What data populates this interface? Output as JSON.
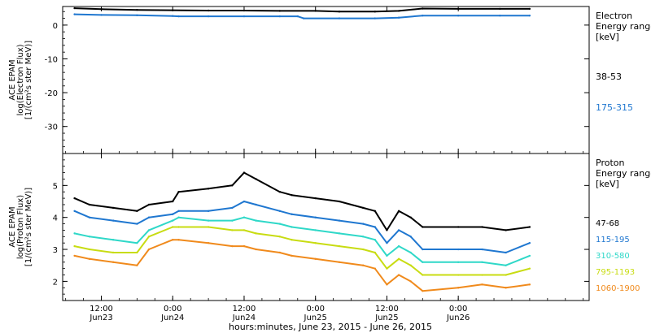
{
  "chart_data": [
    {
      "type": "scatter",
      "panel": "electron",
      "ylabel_lines": [
        "ACE EPAM",
        "log(Electron Flux)",
        "[1/(cm²s ster MeV)]"
      ],
      "ylim": [
        -38,
        5.5
      ],
      "yticks": [
        0,
        -10,
        -20,
        -30
      ],
      "legend_title_lines": [
        "Electron",
        "Energy ranges",
        "[keV]"
      ],
      "series": [
        {
          "name": "38-53",
          "color": "#000000",
          "x": [
            7.5,
            12,
            18,
            24,
            30,
            36,
            42,
            48,
            52,
            58,
            62,
            66,
            72,
            79,
            84
          ],
          "y": [
            5.0,
            4.7,
            4.5,
            4.4,
            4.3,
            4.3,
            4.2,
            4.2,
            4.0,
            4.0,
            4.2,
            4.9,
            4.8,
            4.8,
            4.8
          ]
        },
        {
          "name": "175-315",
          "color": "#1f77d0",
          "x": [
            7.5,
            12,
            18,
            24,
            25,
            30,
            36,
            42,
            45,
            46,
            52,
            58,
            62,
            66,
            72,
            79,
            84
          ],
          "y": [
            3.2,
            3.0,
            2.9,
            2.7,
            2.6,
            2.6,
            2.6,
            2.6,
            2.6,
            2.0,
            2.0,
            2.0,
            2.2,
            2.8,
            2.8,
            2.8,
            2.8
          ]
        }
      ]
    },
    {
      "type": "scatter",
      "panel": "proton",
      "ylabel_lines": [
        "ACE EPAM",
        "log(Proton Flux)",
        "[1/(cm²s ster MeV)]"
      ],
      "ylim": [
        1.4,
        6.0
      ],
      "yticks": [
        2,
        3,
        4,
        5
      ],
      "legend_title_lines": [
        "Proton",
        "Energy ranges",
        "[keV]"
      ],
      "series": [
        {
          "name": "47-68",
          "color": "#000000",
          "x": [
            7.5,
            10,
            14,
            18,
            20,
            24,
            25,
            30,
            34,
            36,
            38,
            42,
            44,
            48,
            52,
            56,
            58,
            60,
            62,
            64,
            66,
            72,
            76,
            80,
            84
          ],
          "y": [
            4.6,
            4.4,
            4.3,
            4.2,
            4.4,
            4.5,
            4.8,
            4.9,
            5.0,
            5.4,
            5.2,
            4.8,
            4.7,
            4.6,
            4.5,
            4.3,
            4.2,
            3.6,
            4.2,
            4.0,
            3.7,
            3.7,
            3.7,
            3.6,
            3.7
          ]
        },
        {
          "name": "115-195",
          "color": "#1f77d0",
          "x": [
            7.5,
            10,
            14,
            18,
            20,
            24,
            25,
            30,
            34,
            36,
            38,
            42,
            44,
            48,
            52,
            56,
            58,
            60,
            62,
            64,
            66,
            72,
            76,
            80,
            84
          ],
          "y": [
            4.2,
            4.0,
            3.9,
            3.8,
            4.0,
            4.1,
            4.2,
            4.2,
            4.3,
            4.5,
            4.4,
            4.2,
            4.1,
            4.0,
            3.9,
            3.8,
            3.7,
            3.2,
            3.6,
            3.4,
            3.0,
            3.0,
            3.0,
            2.9,
            3.2
          ]
        },
        {
          "name": "310-580",
          "color": "#2fd8c8",
          "x": [
            7.5,
            10,
            14,
            18,
            20,
            24,
            25,
            30,
            34,
            36,
            38,
            42,
            44,
            48,
            52,
            56,
            58,
            60,
            62,
            64,
            66,
            72,
            76,
            80,
            84
          ],
          "y": [
            3.5,
            3.4,
            3.3,
            3.2,
            3.6,
            3.9,
            4.0,
            3.9,
            3.9,
            4.0,
            3.9,
            3.8,
            3.7,
            3.6,
            3.5,
            3.4,
            3.3,
            2.8,
            3.1,
            2.9,
            2.6,
            2.6,
            2.6,
            2.5,
            2.8
          ]
        },
        {
          "name": "795-1193",
          "color": "#c8dc12",
          "x": [
            7.5,
            10,
            14,
            18,
            20,
            24,
            25,
            30,
            34,
            36,
            38,
            42,
            44,
            48,
            52,
            56,
            58,
            60,
            62,
            64,
            66,
            72,
            76,
            80,
            84
          ],
          "y": [
            3.1,
            3.0,
            2.9,
            2.9,
            3.4,
            3.7,
            3.7,
            3.7,
            3.6,
            3.6,
            3.5,
            3.4,
            3.3,
            3.2,
            3.1,
            3.0,
            2.9,
            2.4,
            2.7,
            2.5,
            2.2,
            2.2,
            2.2,
            2.2,
            2.4
          ]
        },
        {
          "name": "1060-1900",
          "color": "#f08a1c",
          "x": [
            7.5,
            10,
            14,
            18,
            20,
            24,
            25,
            30,
            34,
            36,
            38,
            42,
            44,
            48,
            52,
            56,
            58,
            60,
            62,
            64,
            66,
            72,
            76,
            80,
            84
          ],
          "y": [
            2.8,
            2.7,
            2.6,
            2.5,
            3.0,
            3.3,
            3.3,
            3.2,
            3.1,
            3.1,
            3.0,
            2.9,
            2.8,
            2.7,
            2.6,
            2.5,
            2.4,
            1.9,
            2.2,
            2.0,
            1.7,
            1.8,
            1.9,
            1.8,
            1.9
          ]
        }
      ]
    }
  ],
  "xaxis": {
    "xlim": [
      5.5,
      94
    ],
    "ticks": [
      {
        "x": 12,
        "label": "12:00",
        "sub": "Jun23"
      },
      {
        "x": 24,
        "label": "0:00",
        "sub": "Jun24"
      },
      {
        "x": 36,
        "label": "12:00",
        "sub": "Jun24"
      },
      {
        "x": 48,
        "label": "0:00",
        "sub": "Jun25"
      },
      {
        "x": 60,
        "label": "12:00",
        "sub": "Jun25"
      },
      {
        "x": 72,
        "label": "0:00",
        "sub": "Jun26"
      }
    ],
    "title": "hours:minutes, June 23, 2015 - June 26, 2015"
  }
}
